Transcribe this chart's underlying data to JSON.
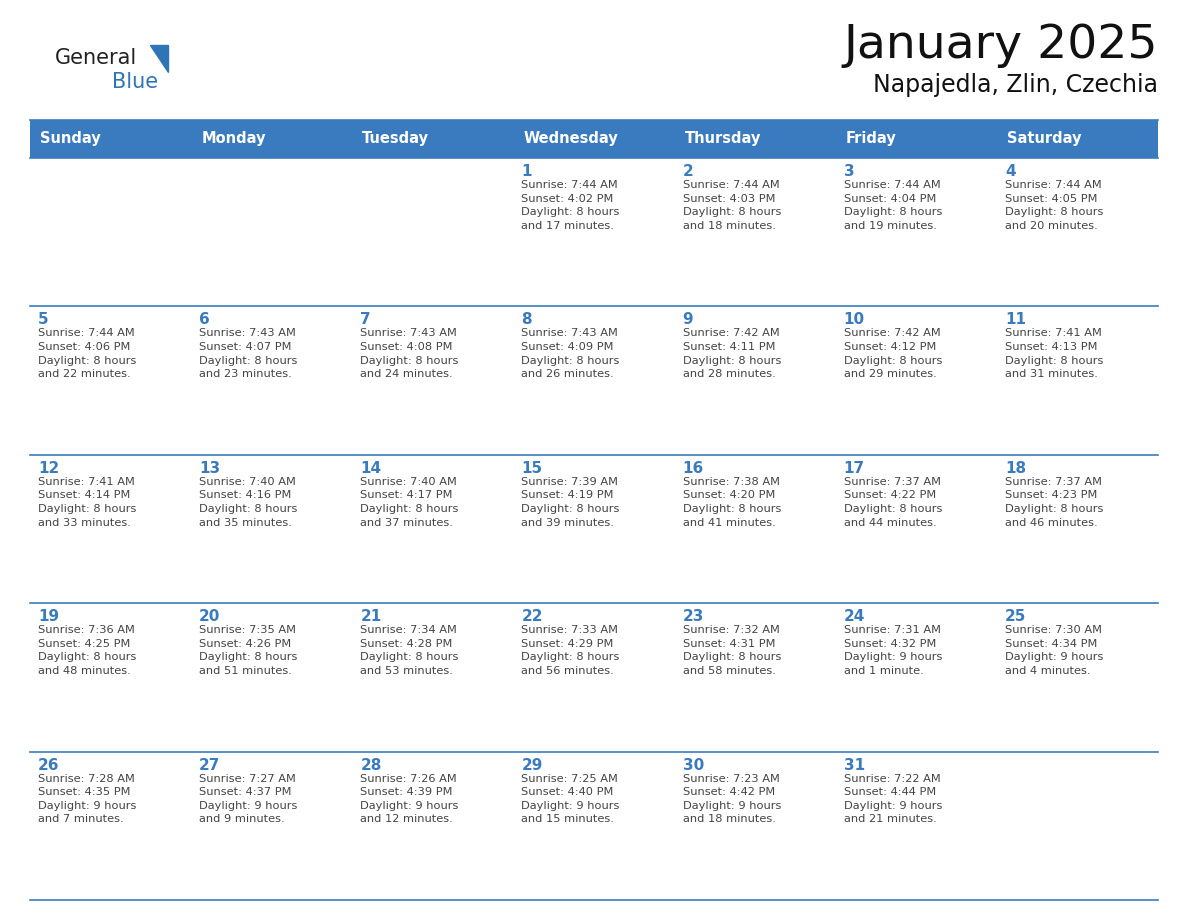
{
  "title": "January 2025",
  "subtitle": "Napajedla, Zlin, Czechia",
  "days_of_week": [
    "Sunday",
    "Monday",
    "Tuesday",
    "Wednesday",
    "Thursday",
    "Friday",
    "Saturday"
  ],
  "header_bg": "#3A7BBF",
  "header_text": "#FFFFFF",
  "cell_bg": "#FFFFFF",
  "cell_bg_alt": "#F0F4F8",
  "row_line_color": "#3A7BBF",
  "day_num_color": "#3A7BBF",
  "text_color": "#444444",
  "logo_general_color": "#222222",
  "logo_blue_color": "#2E75B6",
  "weeks": [
    [
      {
        "day": null,
        "info": null
      },
      {
        "day": null,
        "info": null
      },
      {
        "day": null,
        "info": null
      },
      {
        "day": 1,
        "info": "Sunrise: 7:44 AM\nSunset: 4:02 PM\nDaylight: 8 hours\nand 17 minutes."
      },
      {
        "day": 2,
        "info": "Sunrise: 7:44 AM\nSunset: 4:03 PM\nDaylight: 8 hours\nand 18 minutes."
      },
      {
        "day": 3,
        "info": "Sunrise: 7:44 AM\nSunset: 4:04 PM\nDaylight: 8 hours\nand 19 minutes."
      },
      {
        "day": 4,
        "info": "Sunrise: 7:44 AM\nSunset: 4:05 PM\nDaylight: 8 hours\nand 20 minutes."
      }
    ],
    [
      {
        "day": 5,
        "info": "Sunrise: 7:44 AM\nSunset: 4:06 PM\nDaylight: 8 hours\nand 22 minutes."
      },
      {
        "day": 6,
        "info": "Sunrise: 7:43 AM\nSunset: 4:07 PM\nDaylight: 8 hours\nand 23 minutes."
      },
      {
        "day": 7,
        "info": "Sunrise: 7:43 AM\nSunset: 4:08 PM\nDaylight: 8 hours\nand 24 minutes."
      },
      {
        "day": 8,
        "info": "Sunrise: 7:43 AM\nSunset: 4:09 PM\nDaylight: 8 hours\nand 26 minutes."
      },
      {
        "day": 9,
        "info": "Sunrise: 7:42 AM\nSunset: 4:11 PM\nDaylight: 8 hours\nand 28 minutes."
      },
      {
        "day": 10,
        "info": "Sunrise: 7:42 AM\nSunset: 4:12 PM\nDaylight: 8 hours\nand 29 minutes."
      },
      {
        "day": 11,
        "info": "Sunrise: 7:41 AM\nSunset: 4:13 PM\nDaylight: 8 hours\nand 31 minutes."
      }
    ],
    [
      {
        "day": 12,
        "info": "Sunrise: 7:41 AM\nSunset: 4:14 PM\nDaylight: 8 hours\nand 33 minutes."
      },
      {
        "day": 13,
        "info": "Sunrise: 7:40 AM\nSunset: 4:16 PM\nDaylight: 8 hours\nand 35 minutes."
      },
      {
        "day": 14,
        "info": "Sunrise: 7:40 AM\nSunset: 4:17 PM\nDaylight: 8 hours\nand 37 minutes."
      },
      {
        "day": 15,
        "info": "Sunrise: 7:39 AM\nSunset: 4:19 PM\nDaylight: 8 hours\nand 39 minutes."
      },
      {
        "day": 16,
        "info": "Sunrise: 7:38 AM\nSunset: 4:20 PM\nDaylight: 8 hours\nand 41 minutes."
      },
      {
        "day": 17,
        "info": "Sunrise: 7:37 AM\nSunset: 4:22 PM\nDaylight: 8 hours\nand 44 minutes."
      },
      {
        "day": 18,
        "info": "Sunrise: 7:37 AM\nSunset: 4:23 PM\nDaylight: 8 hours\nand 46 minutes."
      }
    ],
    [
      {
        "day": 19,
        "info": "Sunrise: 7:36 AM\nSunset: 4:25 PM\nDaylight: 8 hours\nand 48 minutes."
      },
      {
        "day": 20,
        "info": "Sunrise: 7:35 AM\nSunset: 4:26 PM\nDaylight: 8 hours\nand 51 minutes."
      },
      {
        "day": 21,
        "info": "Sunrise: 7:34 AM\nSunset: 4:28 PM\nDaylight: 8 hours\nand 53 minutes."
      },
      {
        "day": 22,
        "info": "Sunrise: 7:33 AM\nSunset: 4:29 PM\nDaylight: 8 hours\nand 56 minutes."
      },
      {
        "day": 23,
        "info": "Sunrise: 7:32 AM\nSunset: 4:31 PM\nDaylight: 8 hours\nand 58 minutes."
      },
      {
        "day": 24,
        "info": "Sunrise: 7:31 AM\nSunset: 4:32 PM\nDaylight: 9 hours\nand 1 minute."
      },
      {
        "day": 25,
        "info": "Sunrise: 7:30 AM\nSunset: 4:34 PM\nDaylight: 9 hours\nand 4 minutes."
      }
    ],
    [
      {
        "day": 26,
        "info": "Sunrise: 7:28 AM\nSunset: 4:35 PM\nDaylight: 9 hours\nand 7 minutes."
      },
      {
        "day": 27,
        "info": "Sunrise: 7:27 AM\nSunset: 4:37 PM\nDaylight: 9 hours\nand 9 minutes."
      },
      {
        "day": 28,
        "info": "Sunrise: 7:26 AM\nSunset: 4:39 PM\nDaylight: 9 hours\nand 12 minutes."
      },
      {
        "day": 29,
        "info": "Sunrise: 7:25 AM\nSunset: 4:40 PM\nDaylight: 9 hours\nand 15 minutes."
      },
      {
        "day": 30,
        "info": "Sunrise: 7:23 AM\nSunset: 4:42 PM\nDaylight: 9 hours\nand 18 minutes."
      },
      {
        "day": 31,
        "info": "Sunrise: 7:22 AM\nSunset: 4:44 PM\nDaylight: 9 hours\nand 21 minutes."
      },
      {
        "day": null,
        "info": null
      }
    ]
  ]
}
